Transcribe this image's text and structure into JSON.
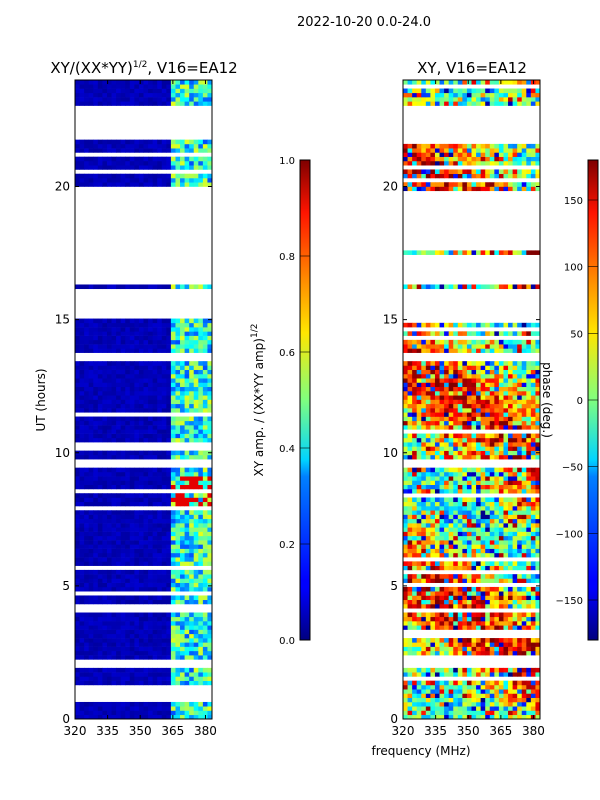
{
  "figure_title": "2022-10-20 0.0-24.0",
  "shared_xlabel": "frequency (MHz)",
  "chart_data": [
    {
      "type": "heatmap",
      "title_main": "XY/(XX*YY)",
      "title_sup": "1/2",
      "title_tail": ", V16=EA12",
      "xlabel": "frequency (MHz)",
      "ylabel": "UT (hours)",
      "xlim": [
        320,
        383
      ],
      "ylim": [
        0,
        24
      ],
      "xticks": [
        320,
        335,
        350,
        365,
        380
      ],
      "yticks": [
        0,
        5,
        10,
        15,
        20
      ],
      "colorbar": {
        "label_main": "XY amp. / (XX*YY amp)",
        "label_sup": "1/2",
        "min": 0.0,
        "max": 1.0,
        "ticks": [
          0.0,
          0.2,
          0.4,
          0.6,
          0.8,
          1.0
        ],
        "tick_labels": [
          "0.0",
          "0.2",
          "0.4",
          "0.6",
          "0.8",
          "1.0"
        ],
        "colormap": "jet"
      },
      "flagged_ut_ranges": [
        [
          18.7,
          19.8
        ],
        [
          17.6,
          18.6
        ],
        [
          16.2,
          17.3
        ],
        [
          14.9,
          16.0
        ],
        [
          21.7,
          23.0
        ],
        [
          9.3,
          9.6
        ],
        [
          13.3,
          13.6
        ],
        [
          3.9,
          4.1
        ],
        [
          1.8,
          2.1
        ]
      ],
      "signal_freq_range_mhz": [
        363,
        381
      ],
      "bright_feature": {
        "ut_range": [
          8.0,
          9.0
        ],
        "value": 0.9
      }
    },
    {
      "type": "heatmap",
      "title": "XY, V16=EA12",
      "xlabel": "frequency (MHz)",
      "ylabel": "phase (deg.)",
      "xlim": [
        320,
        383
      ],
      "ylim": [
        0,
        24
      ],
      "xticks": [
        320,
        335,
        350,
        365,
        380
      ],
      "yticks": [
        0,
        5,
        10,
        15,
        20
      ],
      "colorbar": {
        "label": "phase (deg.)",
        "min": -180,
        "max": 180,
        "ticks": [
          -150,
          -100,
          -50,
          0,
          50,
          100,
          150
        ],
        "tick_labels": [
          "−150",
          "−100",
          "−50",
          "0",
          "50",
          "100",
          "150"
        ],
        "colormap": "jet"
      },
      "flagged_ut_ranges": [
        [
          18.7,
          19.8
        ],
        [
          17.6,
          18.6
        ],
        [
          16.2,
          17.3
        ],
        [
          14.9,
          16.0
        ],
        [
          21.7,
          23.0
        ],
        [
          9.3,
          9.6
        ],
        [
          13.3,
          13.6
        ],
        [
          3.9,
          4.1
        ],
        [
          1.8,
          2.1
        ]
      ]
    }
  ],
  "tick_labels_x": [
    "320",
    "335",
    "350",
    "365",
    "380"
  ],
  "tick_labels_y": [
    "0",
    "5",
    "10",
    "15",
    "20"
  ]
}
